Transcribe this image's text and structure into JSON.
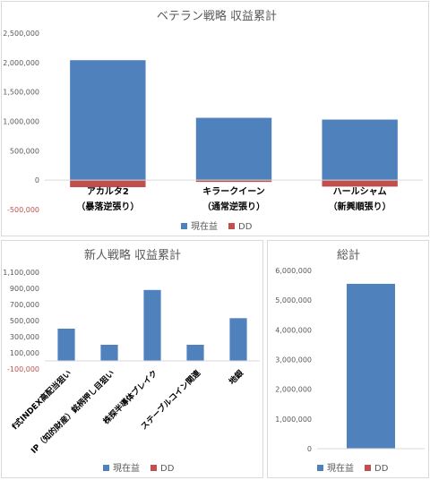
{
  "chart_data": [
    {
      "type": "bar",
      "stacked": true,
      "title": "ベテラン戦略 収益累計",
      "categories": [
        [
          "アカルタ2",
          "（暴落逆張り）"
        ],
        [
          "キラークイーン",
          "（通常逆張り）"
        ],
        [
          "ハールシャム",
          "（新興順張り）"
        ]
      ],
      "series": [
        {
          "name": "現在益",
          "color": "#4f81bd",
          "values": [
            2040000,
            1060000,
            1030000
          ]
        },
        {
          "name": "DD",
          "color": "#c0504d",
          "values": [
            -120000,
            -30000,
            -110000
          ]
        }
      ],
      "ylim": [
        -500000,
        2500000
      ],
      "yticks": [
        -500000,
        0,
        500000,
        1000000,
        1500000,
        2000000,
        2500000
      ],
      "ytick_labels": [
        "-500,000",
        "0",
        "500,000",
        "1,000,000",
        "1,500,000",
        "2,000,000",
        "2,500,000"
      ],
      "legend": "bottom",
      "grid": false
    },
    {
      "type": "bar",
      "stacked": true,
      "title": "新人戦略 収益累計",
      "categories": [
        "f式INDEX高配当狙い",
        "IP（知的財産）銘柄押し目狙い",
        "株探半導体ブレイク",
        "ステーブルコイン関連",
        "地銀"
      ],
      "series": [
        {
          "name": "現在益",
          "color": "#4f81bd",
          "values": [
            400000,
            200000,
            880000,
            200000,
            530000
          ]
        },
        {
          "name": "DD",
          "color": "#c0504d",
          "values": [
            0,
            0,
            0,
            0,
            0
          ]
        }
      ],
      "ylim": [
        -100000,
        1100000
      ],
      "yticks": [
        -100000,
        100000,
        300000,
        500000,
        700000,
        900000,
        1100000
      ],
      "ytick_labels": [
        "-100,000",
        "100,000",
        "300,000",
        "500,000",
        "700,000",
        "900,000",
        "1,100,000"
      ],
      "legend": "bottom",
      "grid": false
    },
    {
      "type": "bar",
      "stacked": true,
      "title": "総計",
      "categories": [
        ""
      ],
      "series": [
        {
          "name": "現在益",
          "color": "#4f81bd",
          "values": [
            5550000
          ]
        },
        {
          "name": "DD",
          "color": "#c0504d",
          "values": [
            0
          ]
        }
      ],
      "ylim": [
        0,
        6000000
      ],
      "yticks": [
        0,
        1000000,
        2000000,
        3000000,
        4000000,
        5000000,
        6000000
      ],
      "ytick_labels": [
        "0",
        "1,000,000",
        "2,000,000",
        "3,000,000",
        "4,000,000",
        "5,000,000",
        "6,000,000"
      ],
      "legend": "bottom",
      "grid": false
    }
  ]
}
